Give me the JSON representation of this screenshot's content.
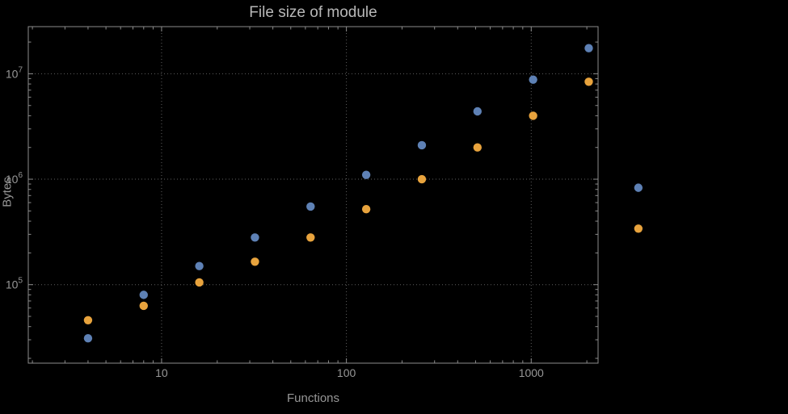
{
  "style": {
    "background": "#000000",
    "frame_color": "#8c8c8c",
    "grid_color": "#5f5f5f",
    "label_color": "#979797",
    "title_color": "#b8b8b8"
  },
  "chart_data": {
    "type": "scatter",
    "title": "File size of module",
    "xlabel": "Functions",
    "ylabel": "Bytes",
    "x_scale": "log",
    "y_scale": "log",
    "xlim": [
      1.9,
      2300
    ],
    "ylim": [
      18000,
      28000000
    ],
    "grid": true,
    "legend_position": "none",
    "x_ticks": [
      {
        "value": 10,
        "label": "10"
      },
      {
        "value": 100,
        "label": "100"
      },
      {
        "value": 1000,
        "label": "1000"
      }
    ],
    "y_ticks": [
      {
        "value": 100000,
        "mantissa": "10",
        "exponent": "5"
      },
      {
        "value": 1000000,
        "mantissa": "10",
        "exponent": "6"
      },
      {
        "value": 10000000,
        "mantissa": "10",
        "exponent": "7"
      }
    ],
    "series": [
      {
        "name": "blue-series",
        "color": "#5e81b5",
        "points": [
          [
            4,
            31000
          ],
          [
            8,
            80000
          ],
          [
            16,
            150000
          ],
          [
            32,
            280000
          ],
          [
            64,
            550000
          ],
          [
            128,
            1100000
          ],
          [
            256,
            2100000
          ],
          [
            512,
            4400000
          ],
          [
            1024,
            8800000
          ],
          [
            2048,
            17500000
          ],
          [
            3800,
            830000
          ]
        ]
      },
      {
        "name": "orange-series",
        "color": "#e8a33d",
        "points": [
          [
            4,
            46000
          ],
          [
            8,
            63000
          ],
          [
            16,
            105000
          ],
          [
            32,
            165000
          ],
          [
            64,
            280000
          ],
          [
            128,
            520000
          ],
          [
            256,
            1000000
          ],
          [
            512,
            2000000
          ],
          [
            1024,
            4000000
          ],
          [
            2048,
            8400000
          ],
          [
            3800,
            340000
          ]
        ]
      }
    ]
  }
}
